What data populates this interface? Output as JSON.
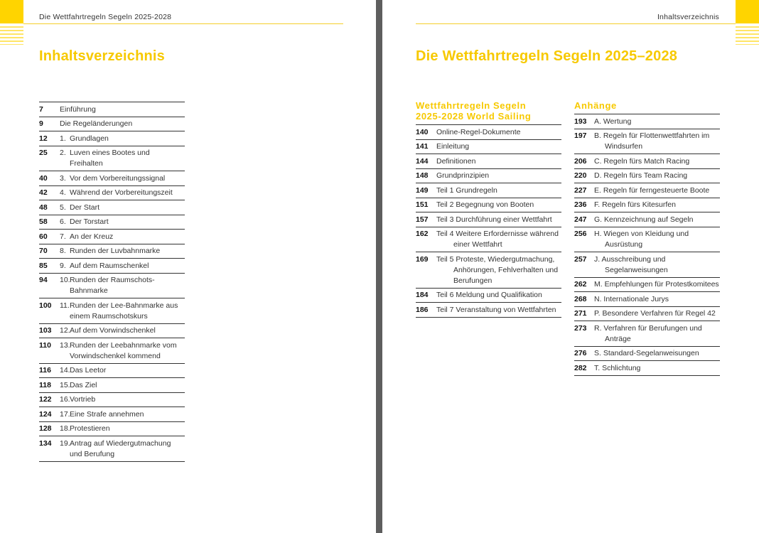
{
  "left_page": {
    "running_head": "Die Wettfahrtregeln Segeln 2025-2028",
    "title": "Inhaltsverzeichnis",
    "entries": [
      {
        "page": "7",
        "prefix": "",
        "text": "Einführung"
      },
      {
        "page": "9",
        "prefix": "",
        "text": "Die Regeländerungen"
      },
      {
        "page": "12",
        "prefix": "1.",
        "text": "Grundlagen"
      },
      {
        "page": "25",
        "prefix": "2.",
        "text": "Luven eines Bootes und Freihalten"
      },
      {
        "page": "40",
        "prefix": "3.",
        "text": "Vor dem Vorbereitungssignal"
      },
      {
        "page": "42",
        "prefix": "4.",
        "text": "Während der Vorbereitungszeit"
      },
      {
        "page": "48",
        "prefix": "5.",
        "text": "Der Start"
      },
      {
        "page": "58",
        "prefix": "6.",
        "text": "Der Torstart"
      },
      {
        "page": "60",
        "prefix": "7.",
        "text": "An der Kreuz"
      },
      {
        "page": "70",
        "prefix": "8.",
        "text": "Runden der Luvbahnmarke"
      },
      {
        "page": "85",
        "prefix": "9.",
        "text": "Auf dem Raumschenkel"
      },
      {
        "page": "94",
        "prefix": "10.",
        "text": "Runden der Raumschots-Bahnmarke"
      },
      {
        "page": "100",
        "prefix": "11.",
        "text": "Runden der Lee-Bahnmarke aus einem Raumschotskurs"
      },
      {
        "page": "103",
        "prefix": "12.",
        "text": "Auf dem Vorwindschenkel"
      },
      {
        "page": "110",
        "prefix": "13.",
        "text": "Runden der Leebahnmarke vom Vorwindschenkel kommend"
      },
      {
        "page": "116",
        "prefix": "14.",
        "text": "Das Leetor"
      },
      {
        "page": "118",
        "prefix": "15.",
        "text": "Das Ziel"
      },
      {
        "page": "122",
        "prefix": "16.",
        "text": "Vortrieb"
      },
      {
        "page": "124",
        "prefix": "17.",
        "text": "Eine Strafe annehmen"
      },
      {
        "page": "128",
        "prefix": "18.",
        "text": "Protestieren"
      },
      {
        "page": "134",
        "prefix": "19.",
        "text": "Antrag auf Wiedergutmachung und Berufung"
      }
    ]
  },
  "right_page": {
    "running_head": "Inhaltsverzeichnis",
    "title": "Die Wettfahrtregeln Segeln 2025–2028",
    "rules_section": {
      "heading": "Wettfahrtregeln Segeln 2025-2028 World Sailing",
      "entries": [
        {
          "page": "140",
          "text": "Online-Regel-Dokumente"
        },
        {
          "page": "141",
          "text": "Einleitung"
        },
        {
          "page": "144",
          "text": "Definitionen"
        },
        {
          "page": "148",
          "text": "Grundprinzipien"
        },
        {
          "page": "149",
          "text": "Teil 1 Grundregeln"
        },
        {
          "page": "151",
          "text": "Teil 2 Begegnung von Booten"
        },
        {
          "page": "157",
          "text": "Teil 3 Durchführung einer Wettfahrt"
        },
        {
          "page": "162",
          "text": "Teil 4 Weitere Erfordernisse während einer Wettfahrt"
        },
        {
          "page": "169",
          "text": "Teil 5 Proteste, Wiedergutmachung, Anhörungen, Fehlverhalten und Berufungen"
        },
        {
          "page": "184",
          "text": "Teil 6 Meldung und Qualifikation"
        },
        {
          "page": "186",
          "text": "Teil 7 Veranstaltung von Wettfahrten"
        }
      ]
    },
    "appendix_section": {
      "heading": "Anhänge",
      "entries": [
        {
          "page": "193",
          "text": "A. Wertung"
        },
        {
          "page": "197",
          "text": "B. Regeln für Flottenwettfahrten im Windsurfen"
        },
        {
          "page": "206",
          "text": "C. Regeln fürs Match Racing"
        },
        {
          "page": "220",
          "text": "D. Regeln fürs Team Racing"
        },
        {
          "page": "227",
          "text": "E. Regeln für ferngesteuerte Boote"
        },
        {
          "page": "236",
          "text": "F. Regeln fürs Kitesurfen"
        },
        {
          "page": "247",
          "text": "G. Kennzeichnung auf Segeln"
        },
        {
          "page": "256",
          "text": "H. Wiegen von Kleidung und Ausrüstung"
        },
        {
          "page": "257",
          "text": "J. Ausschreibung und Segelanweisungen"
        },
        {
          "page": "262",
          "text": "M. Empfehlungen für Protestkomitees"
        },
        {
          "page": "268",
          "text": "N. Internationale Jurys"
        },
        {
          "page": "271",
          "text": "P. Besondere Verfahren für Regel 42"
        },
        {
          "page": "273",
          "text": "R. Verfahren für Berufungen und Anträge"
        },
        {
          "page": "276",
          "text": "S. Standard-Segelanweisungen"
        },
        {
          "page": "282",
          "text": "T. Schlichtung"
        }
      ]
    }
  },
  "colors": {
    "accent": "#f7c900",
    "rule": "#333333",
    "gutter": "#5e5e5e"
  }
}
